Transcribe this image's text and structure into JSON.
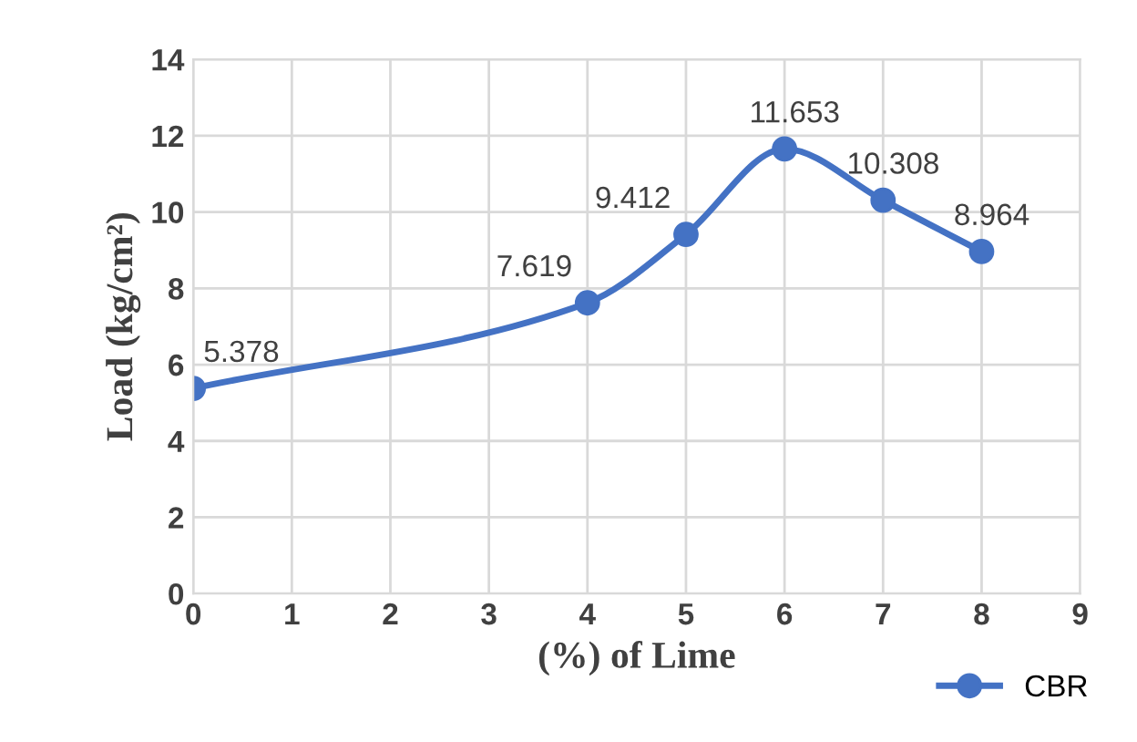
{
  "chart_data": {
    "type": "line",
    "xlabel": "(%) of Lime",
    "ylabel": "Load (kg/cm²)",
    "x": [
      0,
      4,
      5,
      6,
      7,
      8
    ],
    "series": [
      {
        "name": "CBR",
        "color": "#4472c4",
        "values": [
          5.378,
          7.619,
          9.412,
          11.653,
          10.308,
          8.964
        ]
      }
    ],
    "xlim": [
      0,
      9
    ],
    "xticks": [
      0,
      1,
      2,
      3,
      4,
      5,
      6,
      7,
      8,
      9
    ],
    "ylim": [
      0,
      14
    ],
    "yticks": [
      0,
      2,
      4,
      6,
      8,
      10,
      12,
      14
    ],
    "grid": true,
    "legend": "bottom right",
    "marker": "circle",
    "line_style": "solid",
    "data_labels": true
  }
}
